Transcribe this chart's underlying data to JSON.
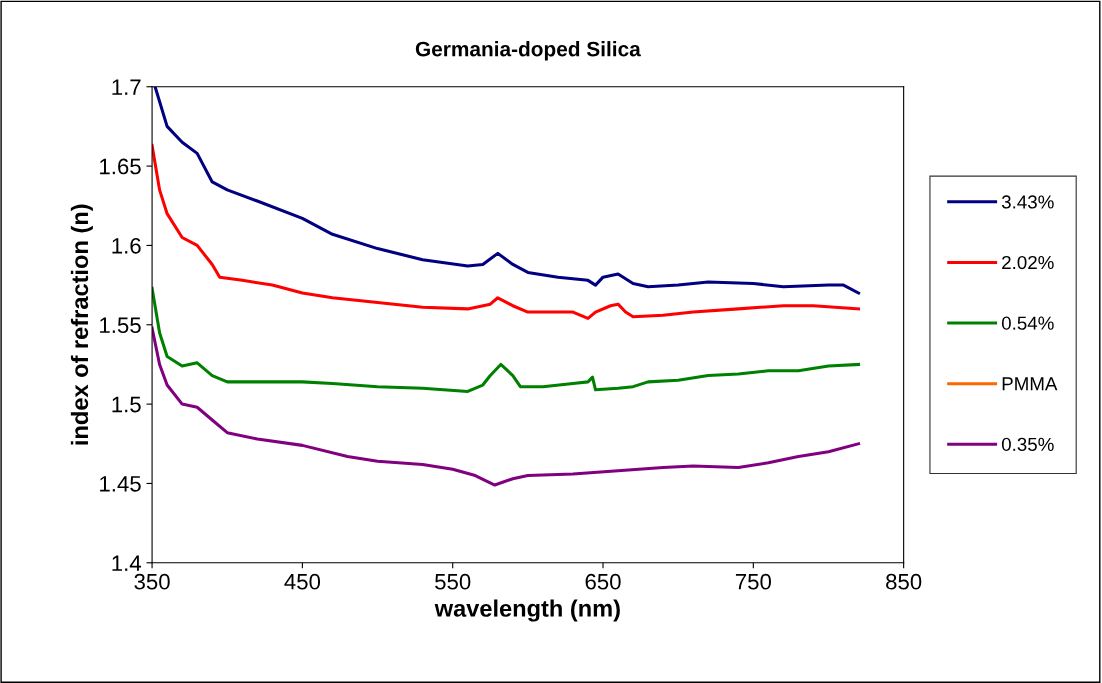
{
  "chart_data": {
    "type": "line",
    "title": "Germania-doped Silica",
    "xlabel": "wavelength (nm)",
    "ylabel": "index of refraction (n)",
    "xlim": [
      350,
      850
    ],
    "xticks": [
      350,
      450,
      550,
      650,
      750,
      850
    ],
    "ylim": [
      1.4,
      1.7
    ],
    "yticks": [
      1.4,
      1.45,
      1.5,
      1.55,
      1.6,
      1.65,
      1.7
    ],
    "grid": false,
    "legend": "right",
    "marker": "none",
    "line_style": "solid",
    "series": [
      {
        "name": "3.43%",
        "color": "#000080",
        "x": [
          352,
          360,
          370,
          380,
          390,
          400,
          420,
          450,
          470,
          500,
          530,
          560,
          570,
          580,
          590,
          600,
          620,
          640,
          645,
          650,
          660,
          670,
          680,
          700,
          720,
          750,
          770,
          800,
          810,
          820
        ],
        "values": [
          1.7,
          1.675,
          1.665,
          1.658,
          1.64,
          1.635,
          1.628,
          1.617,
          1.607,
          1.598,
          1.591,
          1.587,
          1.588,
          1.595,
          1.588,
          1.583,
          1.58,
          1.578,
          1.575,
          1.58,
          1.582,
          1.576,
          1.574,
          1.575,
          1.577,
          1.576,
          1.574,
          1.575,
          1.575,
          1.57
        ]
      },
      {
        "name": "2.02%",
        "color": "#ff0000",
        "x": [
          350,
          355,
          360,
          370,
          380,
          390,
          395,
          410,
          430,
          450,
          470,
          500,
          530,
          560,
          575,
          580,
          590,
          600,
          630,
          640,
          645,
          655,
          660,
          665,
          670,
          690,
          710,
          740,
          770,
          790,
          820
        ],
        "values": [
          1.663,
          1.635,
          1.62,
          1.605,
          1.6,
          1.588,
          1.58,
          1.578,
          1.575,
          1.57,
          1.567,
          1.564,
          1.561,
          1.56,
          1.563,
          1.567,
          1.562,
          1.558,
          1.558,
          1.554,
          1.558,
          1.562,
          1.563,
          1.558,
          1.555,
          1.556,
          1.558,
          1.56,
          1.562,
          1.562,
          1.56
        ]
      },
      {
        "name": "0.54%",
        "color": "#008000",
        "x": [
          350,
          355,
          360,
          370,
          380,
          390,
          400,
          420,
          450,
          470,
          500,
          530,
          560,
          570,
          575,
          582,
          590,
          595,
          610,
          630,
          640,
          643,
          645,
          660,
          670,
          680,
          700,
          720,
          740,
          760,
          780,
          800,
          820
        ],
        "values": [
          1.573,
          1.545,
          1.53,
          1.524,
          1.526,
          1.518,
          1.514,
          1.514,
          1.514,
          1.513,
          1.511,
          1.51,
          1.508,
          1.512,
          1.518,
          1.525,
          1.518,
          1.511,
          1.511,
          1.513,
          1.514,
          1.517,
          1.509,
          1.51,
          1.511,
          1.514,
          1.515,
          1.518,
          1.519,
          1.521,
          1.521,
          1.524,
          1.525
        ]
      },
      {
        "name": "PMMA",
        "color": "#ff6600"
      },
      {
        "name": "0.35%",
        "color": "#800080",
        "x": [
          350,
          355,
          360,
          370,
          380,
          390,
          400,
          420,
          450,
          480,
          500,
          530,
          550,
          565,
          578,
          590,
          600,
          630,
          660,
          690,
          710,
          740,
          760,
          780,
          800,
          820
        ],
        "values": [
          1.548,
          1.525,
          1.512,
          1.5,
          1.498,
          1.49,
          1.482,
          1.478,
          1.474,
          1.467,
          1.464,
          1.462,
          1.459,
          1.455,
          1.449,
          1.453,
          1.455,
          1.456,
          1.458,
          1.46,
          1.461,
          1.46,
          1.463,
          1.467,
          1.47,
          1.475
        ]
      }
    ]
  }
}
